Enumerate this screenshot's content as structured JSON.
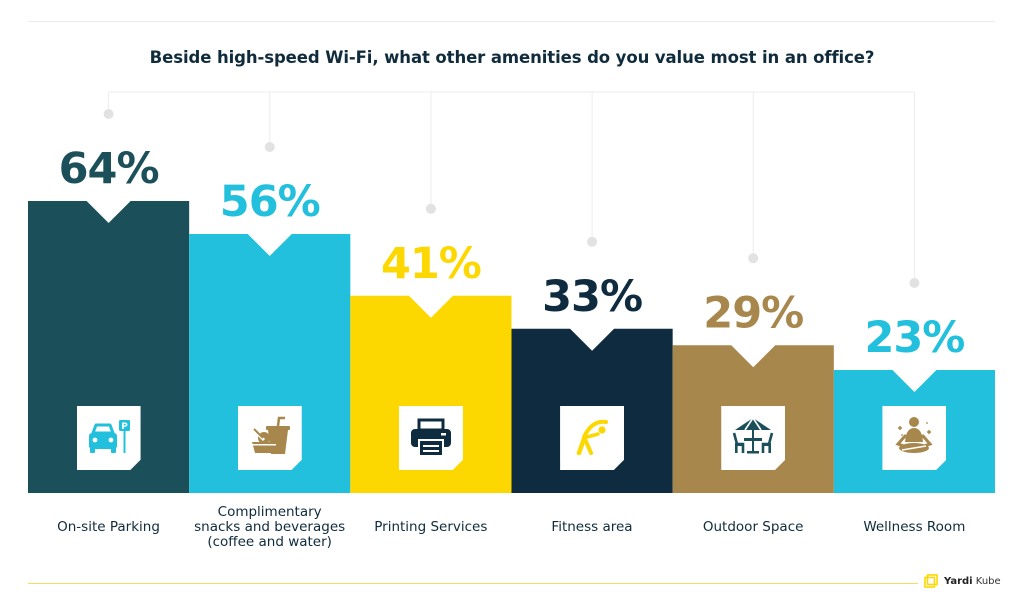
{
  "header": {
    "title": "Beside high-speed Wi-Fi, what other amenities do you value most in an office?"
  },
  "chart_data": {
    "type": "bar",
    "title": "Beside high-speed Wi-Fi, what other amenities do you value most in an office?",
    "xlabel": "",
    "ylabel": "",
    "ylim": [
      0,
      100
    ],
    "grid": false,
    "categories": [
      "On-site Parking",
      "Complimentary snacks and beverages (coffee and water)",
      "Printing Services",
      "Fitness area",
      "Outdoor Space",
      "Wellness Room"
    ],
    "category_lines": [
      [
        "On-site Parking"
      ],
      [
        "Complimentary",
        "snacks and beverages",
        "(coffee and water)"
      ],
      [
        "Printing Services"
      ],
      [
        "Fitness area"
      ],
      [
        "Outdoor Space"
      ],
      [
        "Wellness Room"
      ]
    ],
    "values": [
      64,
      56,
      41,
      33,
      29,
      23
    ],
    "data_labels": [
      "64%",
      "56%",
      "41%",
      "33%",
      "29%",
      "23%"
    ],
    "bar_colors": [
      "#1b4f59",
      "#22c0dc",
      "#fdd800",
      "#0f2b3f",
      "#a8874c",
      "#22c0dc"
    ],
    "label_colors": [
      "#1b4f59",
      "#22c0dc",
      "#fdd800",
      "#0f2b3f",
      "#a8874c",
      "#22c0dc"
    ],
    "icons": [
      "parking-car-icon",
      "snacks-beverages-icon",
      "printer-icon",
      "fitness-stretch-icon",
      "outdoor-umbrella-table-icon",
      "meditation-wellness-icon"
    ],
    "icon_colors": [
      "#22c0dc",
      "#a8874c",
      "#0f2b3f",
      "#fdd800",
      "#1b4f59",
      "#a8874c"
    ]
  },
  "footer": {
    "brand_bold": "Yardi",
    "brand_light": "Kube",
    "brand_color": "#fdd800"
  }
}
